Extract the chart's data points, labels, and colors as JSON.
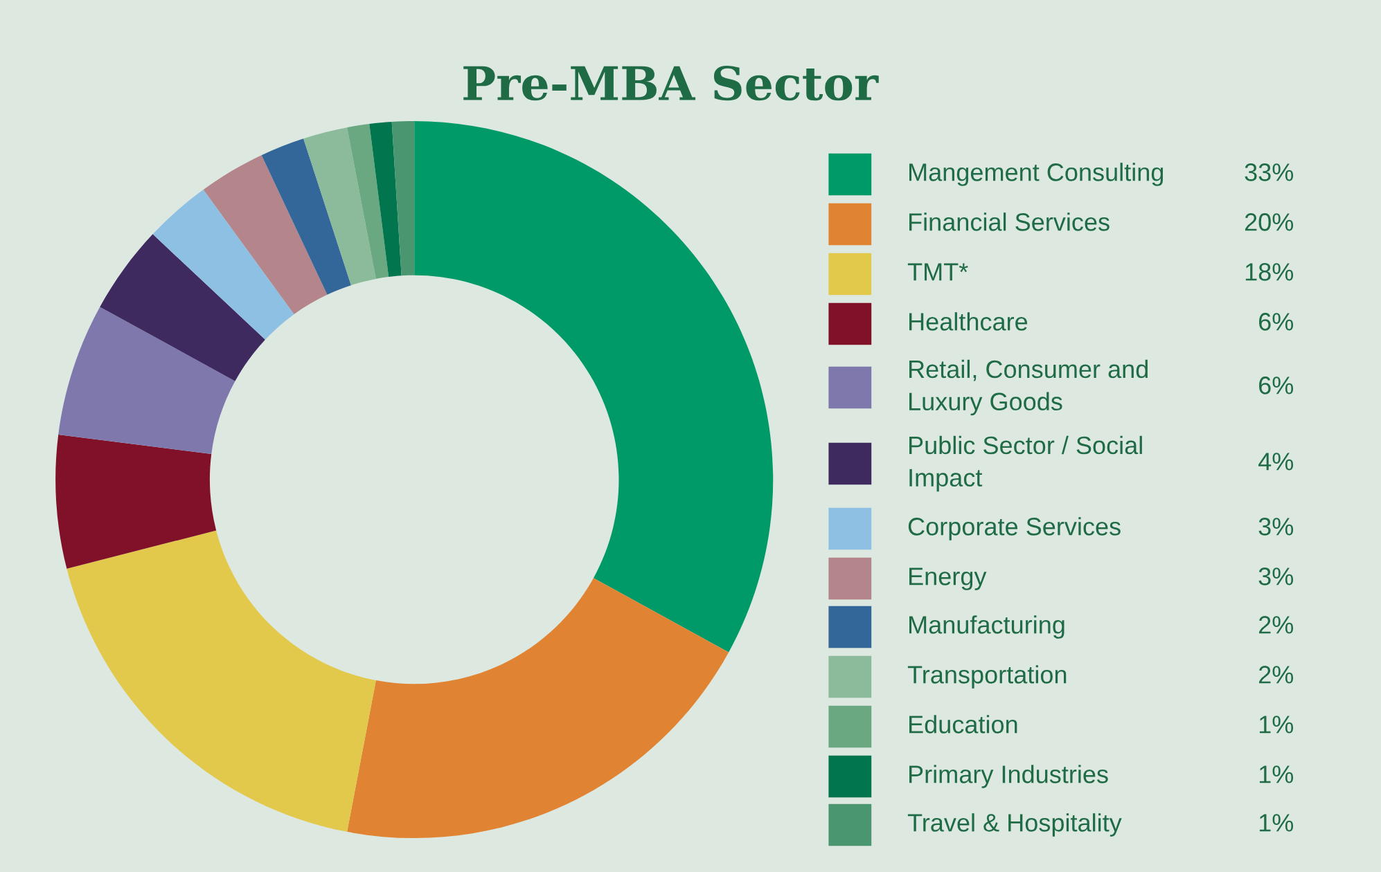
{
  "chart_data": {
    "type": "donut",
    "title": "Pre-MBA Sector",
    "categories": [
      "Mangement Consulting",
      "Financial Services",
      "TMT*",
      "Healthcare",
      "Retail, Consumer and\nLuxury Goods",
      "Public Sector / Social\nImpact",
      "Corporate Services",
      "Energy",
      "Manufacturing",
      "Transportation",
      "Education",
      "Primary Industries",
      "Travel & Hospitality"
    ],
    "values": [
      33,
      20,
      18,
      6,
      6,
      4,
      3,
      3,
      2,
      2,
      1,
      1,
      1
    ],
    "value_labels": [
      "33%",
      "20%",
      "18%",
      "6%",
      "6%",
      "4%",
      "3%",
      "3%",
      "2%",
      "2%",
      "1%",
      "1%",
      "1%"
    ],
    "colors": [
      "#009a68",
      "#e08433",
      "#e3c94b",
      "#801128",
      "#7f78ad",
      "#3f2a5f",
      "#8dc0e2",
      "#b4858b",
      "#336699",
      "#8bbb9b",
      "#6aa882",
      "#00754e",
      "#4a9670"
    ],
    "legend": "right"
  }
}
